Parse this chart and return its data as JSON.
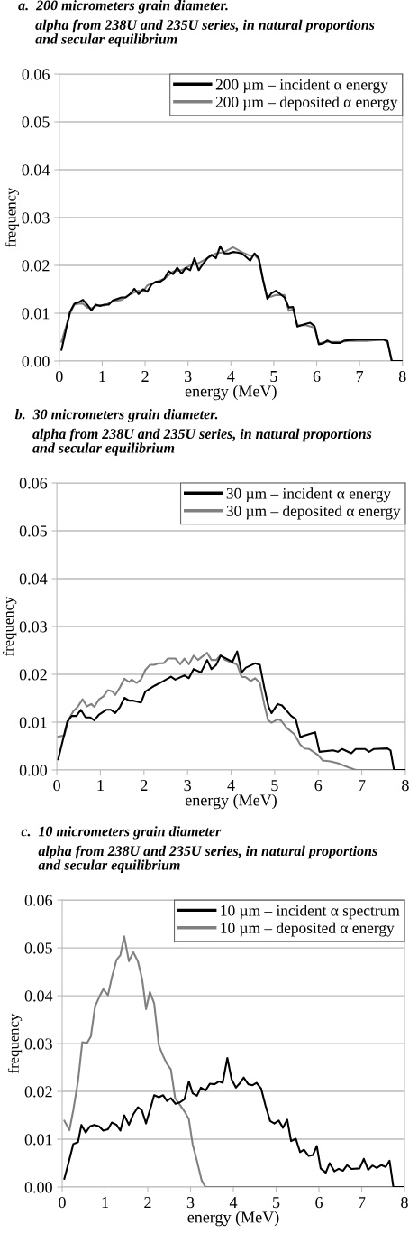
{
  "chart_data": [
    {
      "type": "line",
      "title": "a.  200 micrometers grain diameter.",
      "subtitle": "alpha from 238U and 235U series, in natural proportions\nand secular equilibrium",
      "xlabel": "energy (MeV)",
      "ylabel": "frequency",
      "xlim": [
        0,
        8
      ],
      "ylim": [
        0,
        0.06
      ],
      "xticks": [
        0,
        1,
        2,
        3,
        4,
        5,
        6,
        7,
        8
      ],
      "yticks": [
        {
          "value": 0,
          "label": "0.00"
        },
        {
          "value": 0.01,
          "label": "0.01"
        },
        {
          "value": 0.02,
          "label": "0.02"
        },
        {
          "value": 0.03,
          "label": "0.03"
        },
        {
          "value": 0.04,
          "label": "0.04"
        },
        {
          "value": 0.05,
          "label": "0.05"
        },
        {
          "value": 0.06,
          "label": "0.06"
        }
      ],
      "grid": "y",
      "legend": "top right",
      "series": [
        {
          "name": "200 µm – incident α energy",
          "color": "#000000",
          "x": [
            0.05,
            0.25,
            0.35,
            0.45,
            0.55,
            0.65,
            0.75,
            0.85,
            0.95,
            1.05,
            1.15,
            1.25,
            1.45,
            1.55,
            1.65,
            1.75,
            1.85,
            1.95,
            2.05,
            2.15,
            2.25,
            2.35,
            2.45,
            2.55,
            2.65,
            2.75,
            2.85,
            2.95,
            3.05,
            3.15,
            3.25,
            3.35,
            3.45,
            3.55,
            3.65,
            3.75,
            3.85,
            3.95,
            4.05,
            4.15,
            4.25,
            4.35,
            4.45,
            4.55,
            4.65,
            4.75,
            4.85,
            4.95,
            5.05,
            5.15,
            5.25,
            5.35,
            5.45,
            5.55,
            5.65,
            5.75,
            5.85,
            5.95,
            6.05,
            6.15,
            6.25,
            6.35,
            6.55,
            6.65,
            6.95,
            7.55,
            7.65,
            7.75,
            8.0
          ],
          "values": [
            0.0023,
            0.0103,
            0.012,
            0.0123,
            0.0128,
            0.0118,
            0.0106,
            0.0118,
            0.0115,
            0.0118,
            0.0118,
            0.0127,
            0.0133,
            0.0133,
            0.014,
            0.0151,
            0.014,
            0.015,
            0.0145,
            0.016,
            0.0166,
            0.0166,
            0.0172,
            0.0188,
            0.0182,
            0.0195,
            0.0183,
            0.0195,
            0.019,
            0.0215,
            0.019,
            0.0203,
            0.0215,
            0.0222,
            0.0215,
            0.024,
            0.0225,
            0.0225,
            0.0228,
            0.0227,
            0.0225,
            0.0218,
            0.021,
            0.0225,
            0.0215,
            0.017,
            0.013,
            0.0142,
            0.0147,
            0.014,
            0.0133,
            0.0112,
            0.0113,
            0.0072,
            0.0075,
            0.0078,
            0.008,
            0.0073,
            0.0035,
            0.0037,
            0.0043,
            0.0038,
            0.0038,
            0.0043,
            0.0045,
            0.0045,
            0.0042,
            0,
            0
          ]
        },
        {
          "name": "200 µm – deposited α energy",
          "color": "#808080",
          "x": [
            0.05,
            0.25,
            0.35,
            0.45,
            0.55,
            0.65,
            0.75,
            0.85,
            0.95,
            1.05,
            1.25,
            1.45,
            1.65,
            1.85,
            1.95,
            2.05,
            2.25,
            2.45,
            2.65,
            2.85,
            3.05,
            3.25,
            3.45,
            3.65,
            3.85,
            4.05,
            4.25,
            4.45,
            4.55,
            4.65,
            4.75,
            4.85,
            4.95,
            5.05,
            5.25,
            5.35,
            5.45,
            5.55,
            5.75,
            5.95,
            6.05,
            6.25,
            6.55,
            6.75,
            6.95,
            7.15,
            7.55,
            7.65,
            7.75,
            8.0
          ],
          "values": [
            0.004,
            0.01,
            0.0118,
            0.012,
            0.012,
            0.0112,
            0.011,
            0.0115,
            0.0117,
            0.0116,
            0.0125,
            0.0128,
            0.014,
            0.0147,
            0.0145,
            0.0158,
            0.0165,
            0.0172,
            0.0187,
            0.019,
            0.02,
            0.0205,
            0.0215,
            0.0225,
            0.0228,
            0.0238,
            0.0228,
            0.022,
            0.0222,
            0.0212,
            0.0168,
            0.0133,
            0.0135,
            0.0138,
            0.0138,
            0.0105,
            0.0108,
            0.0075,
            0.0075,
            0.007,
            0.0037,
            0.004,
            0.004,
            0.0042,
            0.0042,
            0.0042,
            0.0045,
            0.004,
            0,
            0
          ]
        }
      ]
    },
    {
      "type": "line",
      "title": "b.  30 micrometers grain diameter.",
      "subtitle": "alpha from 238U and 235U series, in natural proportions\nand secular equilibrium",
      "xlabel": "energy (MeV)",
      "ylabel": "frequency",
      "xlim": [
        0,
        8
      ],
      "ylim": [
        0,
        0.06
      ],
      "xticks": [
        0,
        1,
        2,
        3,
        4,
        5,
        6,
        7,
        8
      ],
      "yticks": [
        {
          "value": 0,
          "label": "0.00"
        },
        {
          "value": 0.01,
          "label": "0.01"
        },
        {
          "value": 0.02,
          "label": "0.02"
        },
        {
          "value": 0.03,
          "label": "0.03"
        },
        {
          "value": 0.04,
          "label": "0.04"
        },
        {
          "value": 0.05,
          "label": "0.05"
        },
        {
          "value": 0.06,
          "label": "0.06"
        }
      ],
      "grid": "y",
      "legend": "top right",
      "series": [
        {
          "name": "30 µm – incident α energy",
          "color": "#000000",
          "x": [
            0.03,
            0.24,
            0.34,
            0.45,
            0.55,
            0.66,
            0.76,
            0.86,
            0.97,
            1.14,
            1.24,
            1.34,
            1.45,
            1.55,
            1.66,
            1.76,
            1.93,
            2.03,
            2.24,
            2.45,
            2.62,
            2.72,
            2.93,
            3.03,
            3.14,
            3.31,
            3.45,
            3.55,
            3.66,
            3.76,
            4.03,
            4.14,
            4.24,
            4.34,
            4.55,
            4.66,
            4.76,
            4.86,
            4.93,
            5.07,
            5.17,
            5.38,
            5.48,
            5.59,
            5.69,
            5.93,
            6.03,
            6.34,
            6.45,
            6.55,
            6.76,
            6.86,
            7.07,
            7.17,
            7.28,
            7.59,
            7.66,
            7.74,
            8.0
          ],
          "values": [
            0.0022,
            0.0101,
            0.0113,
            0.0113,
            0.0126,
            0.011,
            0.011,
            0.0104,
            0.0116,
            0.0126,
            0.0126,
            0.0119,
            0.0132,
            0.0151,
            0.0145,
            0.0145,
            0.0141,
            0.0164,
            0.0176,
            0.0186,
            0.0195,
            0.0189,
            0.0198,
            0.0192,
            0.0211,
            0.0204,
            0.023,
            0.0211,
            0.022,
            0.0239,
            0.0226,
            0.0248,
            0.0204,
            0.0214,
            0.0223,
            0.022,
            0.0173,
            0.0132,
            0.0119,
            0.0138,
            0.0135,
            0.0113,
            0.0107,
            0.0069,
            0.0072,
            0.0079,
            0.0038,
            0.0041,
            0.0038,
            0.0044,
            0.0035,
            0.0044,
            0.0044,
            0.0038,
            0.0044,
            0.0045,
            0.0041,
            0,
            0
          ]
        },
        {
          "name": "30 µm – deposited α energy",
          "color": "#808080",
          "x": [
            0.03,
            0.17,
            0.28,
            0.38,
            0.48,
            0.59,
            0.69,
            0.79,
            0.86,
            0.97,
            1.07,
            1.17,
            1.28,
            1.34,
            1.45,
            1.55,
            1.66,
            1.72,
            1.83,
            1.93,
            2.03,
            2.14,
            2.24,
            2.34,
            2.45,
            2.55,
            2.72,
            2.83,
            2.93,
            3.03,
            3.14,
            3.24,
            3.45,
            3.55,
            3.66,
            3.76,
            3.86,
            4.07,
            4.14,
            4.24,
            4.34,
            4.45,
            4.55,
            4.66,
            4.76,
            4.85,
            4.93,
            5.07,
            5.14,
            5.28,
            5.45,
            5.59,
            5.69,
            5.79,
            6.0,
            6.1,
            6.28,
            6.45,
            6.62,
            6.83,
            6.9,
            8.0
          ],
          "values": [
            0.007,
            0.0072,
            0.0107,
            0.0123,
            0.0132,
            0.0148,
            0.0133,
            0.0138,
            0.0132,
            0.0148,
            0.0154,
            0.0167,
            0.0164,
            0.0157,
            0.0173,
            0.0191,
            0.0184,
            0.0189,
            0.0182,
            0.0189,
            0.0209,
            0.022,
            0.022,
            0.0223,
            0.0223,
            0.0233,
            0.0233,
            0.0221,
            0.0233,
            0.0221,
            0.0239,
            0.023,
            0.0245,
            0.023,
            0.023,
            0.0241,
            0.023,
            0.0223,
            0.022,
            0.0195,
            0.0194,
            0.0186,
            0.0192,
            0.0182,
            0.0138,
            0.0104,
            0.0099,
            0.0106,
            0.0104,
            0.0088,
            0.0075,
            0.0053,
            0.0045,
            0.0044,
            0.0031,
            0.002,
            0.0018,
            0.0014,
            0.0008,
            0.0001,
            0,
            0
          ]
        }
      ]
    },
    {
      "type": "line",
      "title": "c.  10 micrometers grain diameter",
      "subtitle": "alpha from 238U and 235U series, in natural proportions\nand secular equilibrium",
      "xlabel": "energy (MeV)",
      "ylabel": "frequency",
      "xlim": [
        0,
        8
      ],
      "ylim": [
        0,
        0.06
      ],
      "xticks": [
        0,
        1,
        2,
        3,
        4,
        5,
        6,
        7,
        8
      ],
      "yticks": [
        {
          "value": 0,
          "label": "0.00"
        },
        {
          "value": 0.01,
          "label": "0.01"
        },
        {
          "value": 0.02,
          "label": "0.02"
        },
        {
          "value": 0.03,
          "label": "0.03"
        },
        {
          "value": 0.04,
          "label": "0.04"
        },
        {
          "value": 0.05,
          "label": "0.05"
        },
        {
          "value": 0.06,
          "label": "0.06"
        }
      ],
      "grid": "y",
      "legend": "top right",
      "series": [
        {
          "name": "10 µm – incident α spectrum",
          "color": "#000000",
          "x": [
            0.05,
            0.17,
            0.26,
            0.37,
            0.45,
            0.55,
            0.65,
            0.75,
            0.86,
            0.96,
            1.07,
            1.16,
            1.27,
            1.36,
            1.45,
            1.56,
            1.66,
            1.77,
            1.86,
            1.96,
            2.05,
            2.15,
            2.26,
            2.36,
            2.45,
            2.54,
            2.65,
            2.75,
            2.86,
            2.96,
            3.05,
            3.15,
            3.24,
            3.35,
            3.45,
            3.56,
            3.67,
            3.75,
            3.86,
            3.96,
            4.06,
            4.16,
            4.24,
            4.35,
            4.45,
            4.54,
            4.65,
            4.75,
            4.86,
            4.96,
            5.06,
            5.16,
            5.26,
            5.35,
            5.46,
            5.56,
            5.65,
            5.76,
            5.86,
            5.95,
            6.04,
            6.16,
            6.25,
            6.36,
            6.46,
            6.56,
            6.66,
            6.76,
            6.95,
            7.05,
            7.15,
            7.25,
            7.35,
            7.46,
            7.56,
            7.65,
            7.74,
            8.0
          ],
          "values": [
            0.0017,
            0.0058,
            0.009,
            0.0094,
            0.013,
            0.0114,
            0.0127,
            0.013,
            0.0127,
            0.0118,
            0.0121,
            0.0135,
            0.013,
            0.0118,
            0.015,
            0.013,
            0.0152,
            0.0167,
            0.0161,
            0.0133,
            0.0161,
            0.0192,
            0.0188,
            0.0192,
            0.018,
            0.0186,
            0.0174,
            0.0177,
            0.0184,
            0.0221,
            0.0196,
            0.0191,
            0.0208,
            0.0202,
            0.0216,
            0.0215,
            0.0221,
            0.0218,
            0.027,
            0.0225,
            0.0208,
            0.0218,
            0.0229,
            0.0215,
            0.0213,
            0.0218,
            0.0206,
            0.0171,
            0.0138,
            0.0133,
            0.0139,
            0.0124,
            0.0141,
            0.0096,
            0.0101,
            0.0073,
            0.0078,
            0.0065,
            0.0067,
            0.0086,
            0.0039,
            0.003,
            0.005,
            0.0033,
            0.0038,
            0.0034,
            0.0046,
            0.0038,
            0.0039,
            0.0059,
            0.0036,
            0.0045,
            0.004,
            0.0046,
            0.0042,
            0.0055,
            0,
            0
          ]
        },
        {
          "name": "10 µm – deposited α energy",
          "color": "#808080",
          "x": [
            0.05,
            0.17,
            0.26,
            0.37,
            0.47,
            0.58,
            0.67,
            0.77,
            0.88,
            0.96,
            1.07,
            1.16,
            1.27,
            1.36,
            1.45,
            1.56,
            1.66,
            1.77,
            1.87,
            1.96,
            2.05,
            2.15,
            2.26,
            2.36,
            2.44,
            2.54,
            2.64,
            2.75,
            2.86,
            2.96,
            3.05,
            3.14,
            3.26,
            3.35,
            8.0
          ],
          "values": [
            0.0139,
            0.0119,
            0.0161,
            0.0221,
            0.0303,
            0.0301,
            0.0315,
            0.0378,
            0.04,
            0.0414,
            0.0401,
            0.0438,
            0.0475,
            0.0485,
            0.0524,
            0.0472,
            0.0491,
            0.0472,
            0.0434,
            0.0372,
            0.0408,
            0.0384,
            0.0296,
            0.0274,
            0.0259,
            0.0246,
            0.0186,
            0.0172,
            0.0158,
            0.0142,
            0.0089,
            0.0058,
            0.0014,
            0,
            0
          ]
        }
      ]
    }
  ]
}
